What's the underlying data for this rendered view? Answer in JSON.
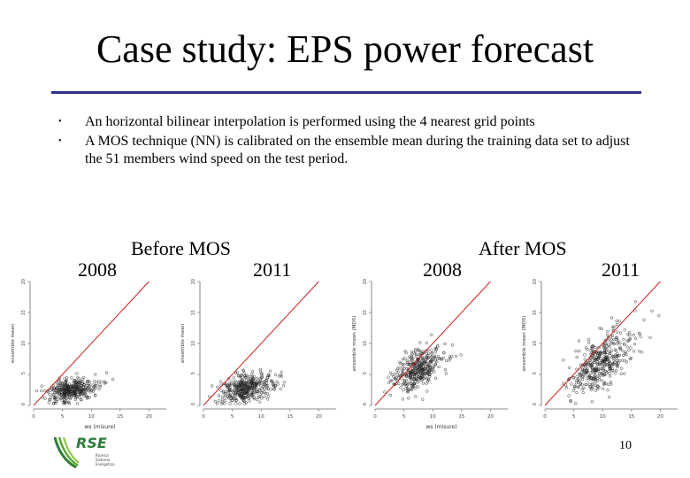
{
  "slide": {
    "title": "Case study: EPS power forecast",
    "bullets": [
      "An horizontal bilinear interpolation is performed using the 4 nearest grid points",
      "A MOS technique (NN) is calibrated on the ensemble mean during the training data set to adjust the 51 members wind speed on the test period."
    ],
    "bullet_marker": "•",
    "group_before": "Before MOS",
    "group_after": "After MOS",
    "page_number": "10"
  },
  "logo": {
    "text": "RSE",
    "tagline": [
      "Ricerca",
      "Sistema",
      "Energetico"
    ],
    "color": "#2f7d3a"
  },
  "colors": {
    "rule": "#2f2f8f",
    "identity_line": "#cc2222",
    "points": "#222222"
  },
  "chart_data": [
    {
      "type": "scatter",
      "title": "2008",
      "group": "Before MOS",
      "xlabel": "ws (misure)",
      "ylabel": "ensemble mean",
      "xticks": [
        0,
        5,
        10,
        15,
        20
      ],
      "yticks": [
        0,
        5,
        10,
        15,
        20
      ],
      "xlim": [
        0,
        23
      ],
      "ylim": [
        0,
        20
      ],
      "identity_line": true,
      "cloud": {
        "center": [
          5.2,
          2.3
        ],
        "spread": [
          2.6,
          0.9
        ],
        "slope": 0.15,
        "n": 380
      }
    },
    {
      "type": "scatter",
      "title": "2011",
      "group": "Before MOS",
      "xlabel": "",
      "ylabel": "ensemble mean",
      "xticks": [
        0,
        5,
        10,
        15,
        20
      ],
      "yticks": [
        0,
        5,
        10,
        15,
        20
      ],
      "xlim": [
        0,
        23
      ],
      "ylim": [
        0,
        20
      ],
      "identity_line": true,
      "cloud": {
        "center": [
          6.0,
          2.6
        ],
        "spread": [
          3.0,
          1.1
        ],
        "slope": 0.18,
        "n": 400
      }
    },
    {
      "type": "scatter",
      "title": "2008",
      "group": "After MOS",
      "xlabel": "ws (misure)",
      "ylabel": "ensemble mean (MOS)",
      "xticks": [
        0,
        5,
        10,
        15,
        20
      ],
      "yticks": [
        0,
        5,
        10,
        15,
        20
      ],
      "xlim": [
        0,
        23
      ],
      "ylim": [
        0,
        20
      ],
      "identity_line": true,
      "cloud": {
        "center": [
          6.0,
          5.2
        ],
        "spread": [
          2.8,
          1.5
        ],
        "slope": 0.45,
        "n": 380
      }
    },
    {
      "type": "scatter",
      "title": "2011",
      "group": "After MOS",
      "xlabel": "",
      "ylabel": "ensemble mean (MOS)",
      "xticks": [
        0,
        5,
        10,
        15,
        20
      ],
      "yticks": [
        0,
        5,
        10,
        15,
        20
      ],
      "xlim": [
        0,
        23
      ],
      "ylim": [
        0,
        20
      ],
      "identity_line": true,
      "cloud": {
        "center": [
          8.0,
          6.0
        ],
        "spread": [
          3.5,
          2.2
        ],
        "slope": 0.55,
        "n": 420
      }
    }
  ]
}
